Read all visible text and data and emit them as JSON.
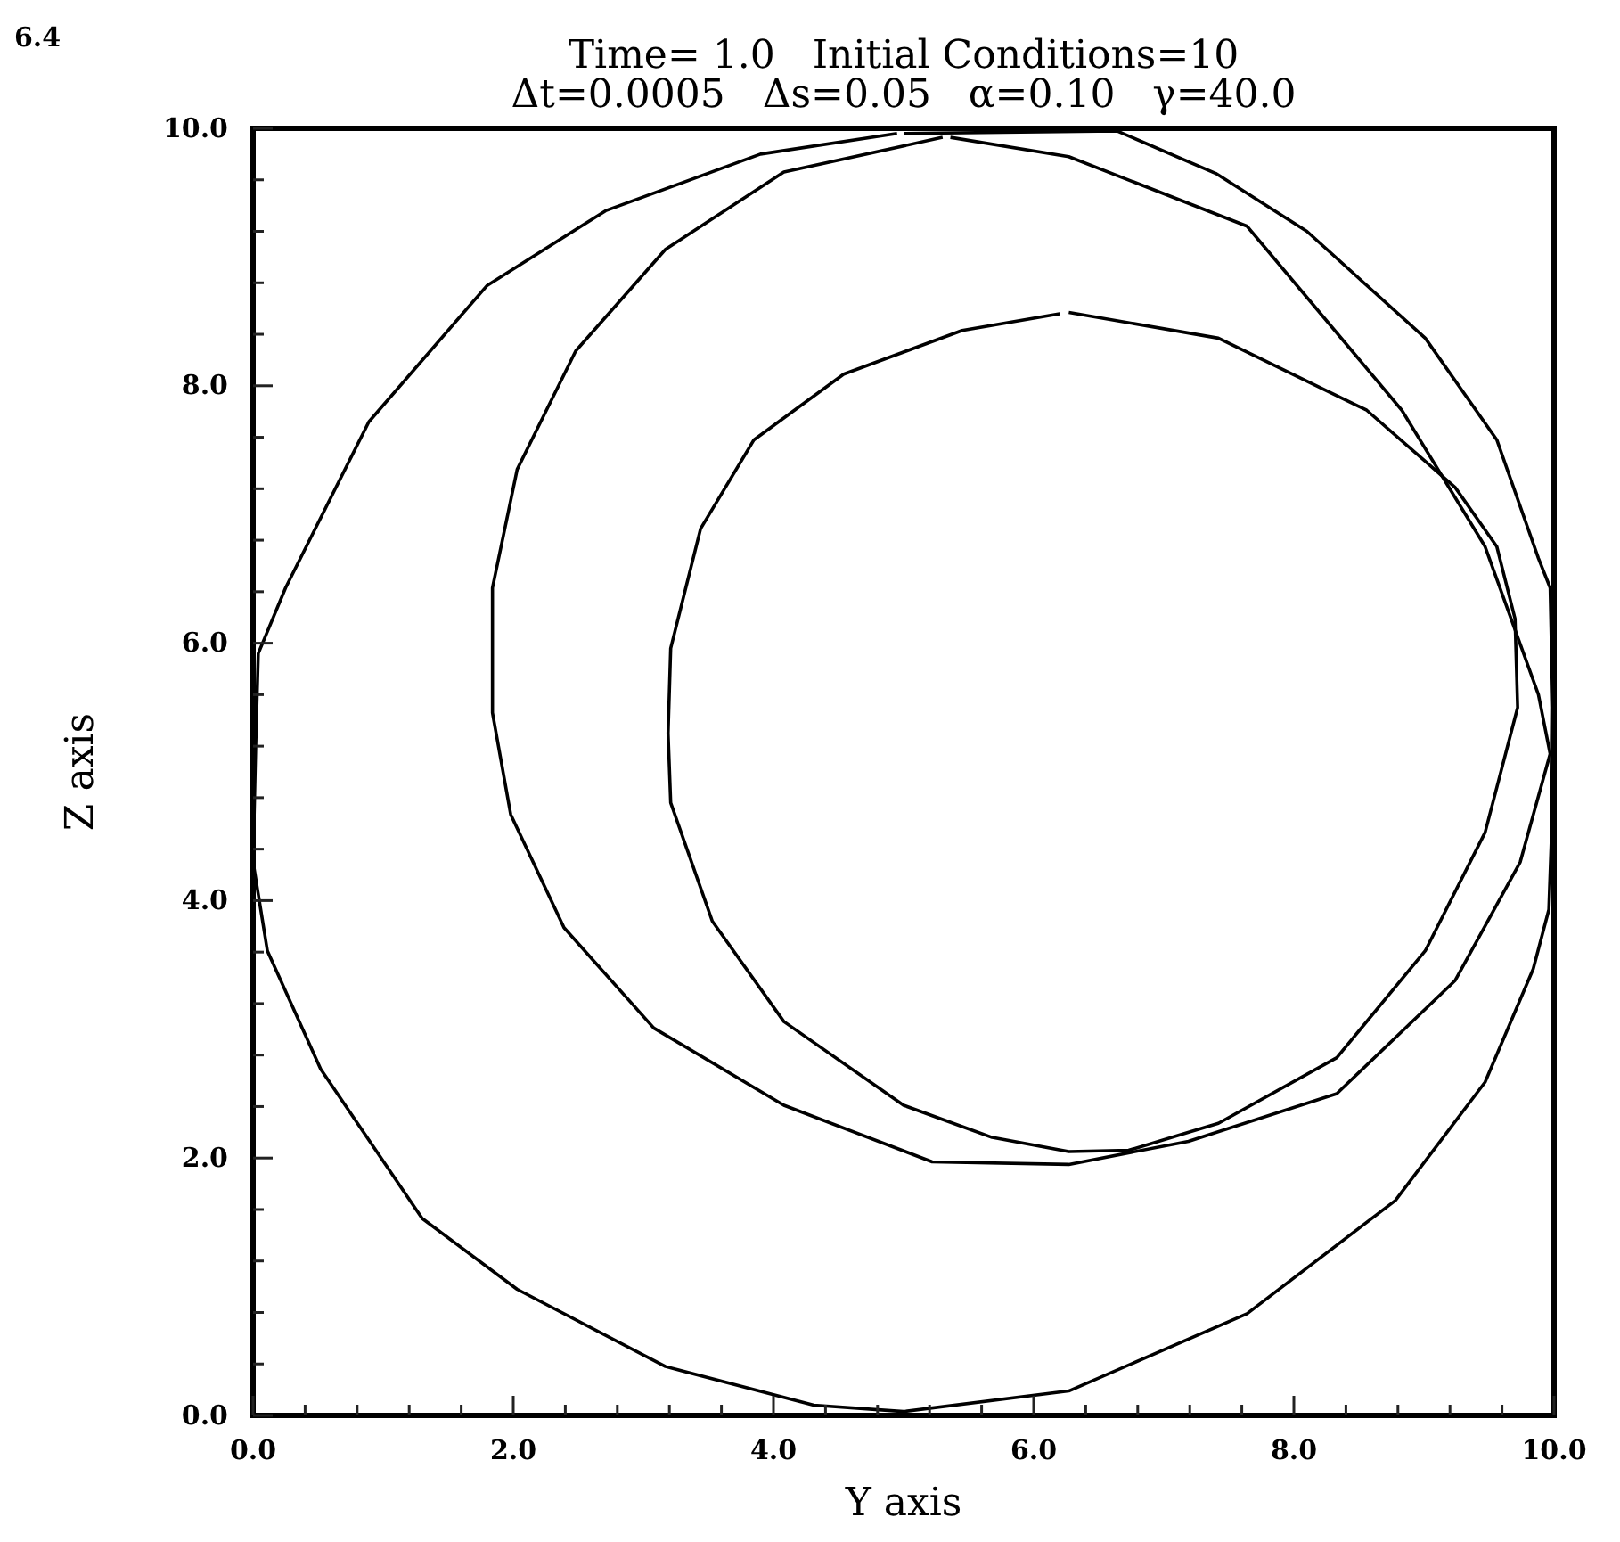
{
  "chart_data": {
    "type": "line",
    "title": "Time= 1.0   Initial Conditions=10",
    "subtitle": "Δt=0.0005   Δs=0.05   α=0.10   γ=40.0",
    "xlabel": "Y axis",
    "ylabel": "Z axis",
    "annotations": [
      "6.4"
    ],
    "xlim": [
      0,
      10
    ],
    "ylim": [
      0,
      10
    ],
    "xticks": [
      {
        "value": 0,
        "label": "0.0"
      },
      {
        "value": 0.4,
        "label": null
      },
      {
        "value": 0.8,
        "label": null
      },
      {
        "value": 1.2,
        "label": null
      },
      {
        "value": 1.6,
        "label": null
      },
      {
        "value": 2,
        "label": "2.0"
      },
      {
        "value": 2.4,
        "label": null
      },
      {
        "value": 2.8,
        "label": null
      },
      {
        "value": 3.2,
        "label": null
      },
      {
        "value": 3.6,
        "label": null
      },
      {
        "value": 4,
        "label": "4.0"
      },
      {
        "value": 4.4,
        "label": null
      },
      {
        "value": 4.8,
        "label": null
      },
      {
        "value": 5.2,
        "label": null
      },
      {
        "value": 5.6,
        "label": null
      },
      {
        "value": 6,
        "label": "6.0"
      },
      {
        "value": 6.4,
        "label": null
      },
      {
        "value": 6.8,
        "label": null
      },
      {
        "value": 7.2,
        "label": null
      },
      {
        "value": 7.6,
        "label": null
      },
      {
        "value": 8,
        "label": "8.0"
      },
      {
        "value": 8.4,
        "label": null
      },
      {
        "value": 8.8,
        "label": null
      },
      {
        "value": 9.2,
        "label": null
      },
      {
        "value": 9.6,
        "label": null
      },
      {
        "value": 10,
        "label": "10.0"
      }
    ],
    "yticks": [
      {
        "value": 0,
        "label": "0.0"
      },
      {
        "value": 0.4,
        "label": null
      },
      {
        "value": 0.8,
        "label": null
      },
      {
        "value": 1.2,
        "label": null
      },
      {
        "value": 1.6,
        "label": null
      },
      {
        "value": 2,
        "label": "2.0"
      },
      {
        "value": 2.4,
        "label": null
      },
      {
        "value": 2.8,
        "label": null
      },
      {
        "value": 3.2,
        "label": null
      },
      {
        "value": 3.6,
        "label": null
      },
      {
        "value": 4,
        "label": "4.0"
      },
      {
        "value": 4.4,
        "label": null
      },
      {
        "value": 4.8,
        "label": null
      },
      {
        "value": 5.2,
        "label": null
      },
      {
        "value": 5.6,
        "label": null
      },
      {
        "value": 6,
        "label": "6.0"
      },
      {
        "value": 6.4,
        "label": null
      },
      {
        "value": 6.8,
        "label": null
      },
      {
        "value": 7.2,
        "label": null
      },
      {
        "value": 7.6,
        "label": null
      },
      {
        "value": 8,
        "label": "8.0"
      },
      {
        "value": 8.4,
        "label": null
      },
      {
        "value": 8.8,
        "label": null
      },
      {
        "value": 9.2,
        "label": null
      },
      {
        "value": 9.6,
        "label": null
      },
      {
        "value": 10,
        "label": "10.0"
      }
    ],
    "grid": false,
    "marker": "none",
    "line_style": "solid",
    "series": [
      {
        "color": "#000000",
        "x": [
          5.0,
          6.64,
          7.4,
          8.1,
          9.01,
          9.56,
          9.88,
          9.97,
          9.99,
          9.98,
          9.96,
          9.84,
          9.47,
          8.78,
          7.64,
          6.27,
          5.0,
          4.31,
          3.17,
          2.03,
          1.3,
          0.52,
          0.11,
          0.0,
          0.02,
          0.04,
          0.25,
          0.89,
          1.8,
          2.71,
          3.9,
          4.95
        ],
        "values": [
          9.96,
          9.98,
          9.65,
          9.2,
          8.37,
          7.58,
          6.66,
          6.43,
          5.5,
          4.5,
          3.93,
          3.47,
          2.59,
          1.67,
          0.79,
          0.19,
          0.03,
          0.08,
          0.38,
          0.98,
          1.53,
          2.69,
          3.61,
          4.3,
          5.2,
          5.92,
          6.43,
          7.72,
          8.78,
          9.36,
          9.8,
          9.96
        ]
      },
      {
        "color": "#000000",
        "x": [
          5.36,
          6.27,
          7.64,
          8.83,
          9.47,
          9.88,
          9.97,
          9.74,
          9.24,
          8.33,
          7.19,
          6.27,
          5.22,
          4.08,
          3.08,
          2.39,
          1.98,
          1.84,
          1.84,
          2.03,
          2.48,
          3.17,
          4.08,
          5.3
        ],
        "values": [
          9.93,
          9.78,
          9.24,
          7.81,
          6.75,
          5.6,
          5.14,
          4.3,
          3.38,
          2.5,
          2.13,
          1.95,
          1.97,
          2.41,
          3.01,
          3.79,
          4.67,
          5.46,
          6.43,
          7.35,
          8.27,
          9.06,
          9.66,
          9.93
        ]
      },
      {
        "color": "#000000",
        "x": [
          6.27,
          7.42,
          8.56,
          9.24,
          9.56,
          9.7,
          9.72,
          9.47,
          9.01,
          8.33,
          7.42,
          6.73,
          6.27,
          5.68,
          5.0,
          4.08,
          3.53,
          3.21,
          3.19,
          3.21,
          3.44,
          3.85,
          4.54,
          5.45,
          6.2
        ],
        "values": [
          8.57,
          8.37,
          7.81,
          7.21,
          6.75,
          6.19,
          5.5,
          4.53,
          3.61,
          2.78,
          2.27,
          2.06,
          2.05,
          2.16,
          2.41,
          3.06,
          3.84,
          4.76,
          5.3,
          5.96,
          6.89,
          7.58,
          8.09,
          8.43,
          8.56
        ]
      }
    ]
  }
}
